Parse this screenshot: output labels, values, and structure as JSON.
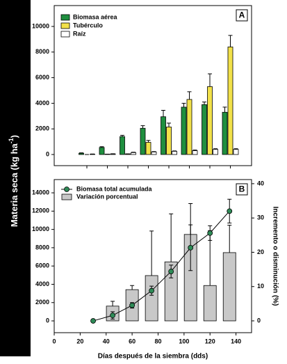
{
  "ylabel": {
    "text": "Materia seca (kg ha",
    "sup": "-1",
    "end": ")"
  },
  "chart_data": [
    {
      "type": "bar",
      "panel_label": "A",
      "categories": [
        null,
        null,
        null,
        null,
        null,
        null,
        null,
        null
      ],
      "series": [
        {
          "name": "Biomasa aérea",
          "color": "#1f8f3f",
          "values": [
            100,
            550,
            1400,
            2050,
            2950,
            3700,
            3900,
            3300
          ],
          "errors": [
            30,
            60,
            100,
            200,
            500,
            300,
            200,
            400
          ]
        },
        {
          "name": "Tubérculo",
          "color": "#f2e14a",
          "values": [
            0,
            30,
            50,
            950,
            2150,
            4300,
            5300,
            8400
          ],
          "errors": [
            0,
            0,
            0,
            150,
            300,
            600,
            1000,
            900
          ]
        },
        {
          "name": "Raíz",
          "color": "#ffffff",
          "values": [
            30,
            50,
            150,
            200,
            250,
            300,
            400,
            400
          ],
          "errors": [
            10,
            10,
            30,
            30,
            30,
            50,
            50,
            50
          ]
        }
      ],
      "ylim": [
        -870,
        11630
      ],
      "yticks": [
        0,
        2000,
        4000,
        6000,
        8000,
        10000
      ],
      "legend": "upper left"
    },
    {
      "type": "combo",
      "panel_label": "B",
      "xlabel": "Días después de la siembra (dds)",
      "y2label": "Incremento o disminución (%)",
      "xlim": [
        0,
        152
      ],
      "xticks": [
        0,
        20,
        40,
        60,
        80,
        100,
        120,
        140
      ],
      "ylim": [
        -1290,
        15450
      ],
      "yticks": [
        0,
        2000,
        4000,
        6000,
        8000,
        10000,
        12000,
        14000
      ],
      "y2lim": [
        -3.45,
        41.2
      ],
      "y2ticks": [
        0,
        10,
        20,
        30,
        40
      ],
      "series": [
        {
          "name": "Biomasa total acumulada",
          "type": "line",
          "color": "#2e8b57",
          "x": [
            30,
            45,
            60,
            75,
            90,
            105,
            120,
            135
          ],
          "values": [
            0,
            600,
            1700,
            3300,
            5400,
            8000,
            9600,
            12000
          ],
          "errors": [
            0,
            400,
            300,
            500,
            700,
            2500,
            800,
            1300
          ]
        },
        {
          "name": "Variación porcentual",
          "type": "bar",
          "axis": "y2",
          "color": "#c8c8c8",
          "x": [
            45,
            60,
            75,
            90,
            105,
            120,
            135
          ],
          "values": [
            4.3,
            9.1,
            13.2,
            17.2,
            25.2,
            10.3,
            19.9
          ],
          "errors": [
            1.4,
            1.2,
            13,
            14,
            9,
            16,
            8
          ]
        }
      ],
      "legend": "upper left"
    }
  ]
}
